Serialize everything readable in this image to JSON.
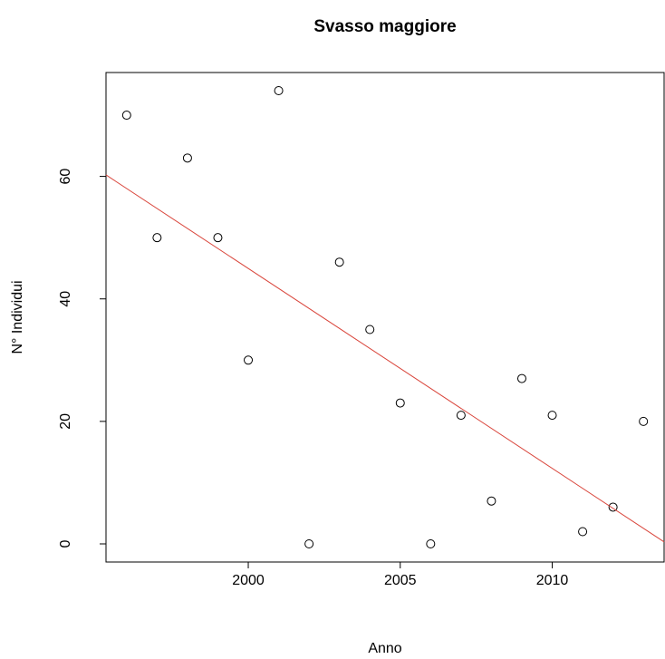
{
  "chart_data": {
    "type": "scatter",
    "title": "Svasso maggiore",
    "x_label": "Anno",
    "y_label": "N° Individui",
    "x": [
      1996,
      1997,
      1998,
      1999,
      2000,
      2001,
      2002,
      2003,
      2004,
      2005,
      2006,
      2007,
      2008,
      2009,
      2010,
      2011,
      2012,
      2013
    ],
    "series": [
      {
        "name": "Svasso maggiore",
        "color": "#000000",
        "values": [
          70,
          50,
          63,
          50,
          30,
          74,
          0,
          46,
          35,
          23,
          0,
          21,
          7,
          27,
          21,
          2,
          6,
          20
        ]
      }
    ],
    "trend_line": {
      "color": "#d9443a",
      "x": [
        1995.32,
        2013.68
      ],
      "y": [
        60.24,
        0.32
      ]
    },
    "xlim": [
      1995.32,
      2013.68
    ],
    "ylim": [
      -2.96,
      76.96
    ],
    "xticks": [
      2000,
      2005,
      2010
    ],
    "yticks": [
      0,
      20,
      40,
      60
    ]
  }
}
